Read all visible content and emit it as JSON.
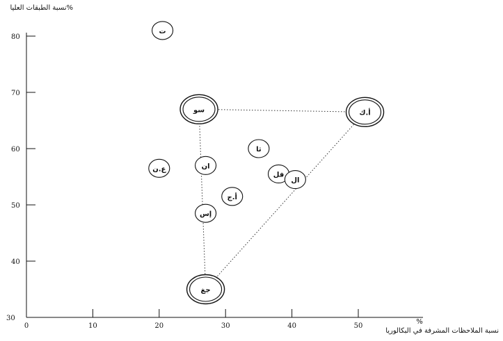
{
  "chart_data": {
    "type": "scatter",
    "title": "",
    "ylabel": "نسبة الطبقات العليا%",
    "xlabel": "نسبة الملاحظات المشرفة في البكالوريا",
    "x_unit": "%",
    "xlim": [
      0,
      55
    ],
    "ylim": [
      30,
      85
    ],
    "x_ticks": [
      0,
      10,
      20,
      30,
      40,
      50
    ],
    "y_ticks": [
      30,
      40,
      50,
      60,
      70,
      80
    ],
    "points": [
      {
        "label": "ت",
        "x": 20.5,
        "y": 81.0,
        "emphasis": false
      },
      {
        "label": "سو",
        "x": 26.0,
        "y": 67.0,
        "emphasis": true
      },
      {
        "label": "أ.ك",
        "x": 51.0,
        "y": 66.5,
        "emphasis": true
      },
      {
        "label": "ع.ن",
        "x": 20.0,
        "y": 56.5,
        "emphasis": false
      },
      {
        "label": "ان",
        "x": 27.0,
        "y": 57.0,
        "emphasis": false
      },
      {
        "label": "ثا",
        "x": 35.0,
        "y": 60.0,
        "emphasis": false
      },
      {
        "label": "فل",
        "x": 38.0,
        "y": 55.5,
        "emphasis": false
      },
      {
        "label": "ال",
        "x": 40.5,
        "y": 54.5,
        "emphasis": false
      },
      {
        "label": "أ.ج",
        "x": 31.0,
        "y": 51.5,
        "emphasis": false
      },
      {
        "label": "إس",
        "x": 27.0,
        "y": 48.5,
        "emphasis": false
      },
      {
        "label": "جغ",
        "x": 27.0,
        "y": 35.0,
        "emphasis": true
      }
    ],
    "connections": [
      [
        "سو",
        "أ.ك"
      ],
      [
        "سو",
        "جغ"
      ],
      [
        "أ.ك",
        "جغ"
      ]
    ]
  }
}
